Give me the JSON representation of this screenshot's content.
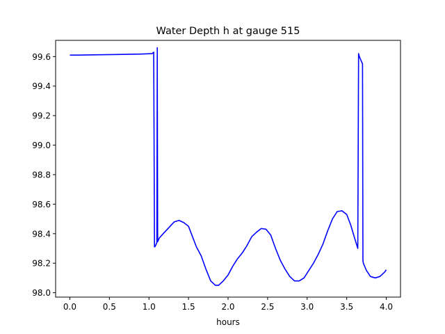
{
  "chart_data": {
    "type": "line",
    "title": "Water Depth h at gauge 515",
    "xlabel": "hours",
    "ylabel": "",
    "xlim": [
      -0.18,
      4.18
    ],
    "ylim": [
      97.97,
      99.71
    ],
    "xticks": [
      0.0,
      0.5,
      1.0,
      1.5,
      2.0,
      2.5,
      3.0,
      3.5,
      4.0
    ],
    "xtick_labels": [
      "0.0",
      "0.5",
      "1.0",
      "1.5",
      "2.0",
      "2.5",
      "3.0",
      "3.5",
      "4.0"
    ],
    "yticks": [
      98.0,
      98.2,
      98.4,
      98.6,
      98.8,
      99.0,
      99.2,
      99.4,
      99.6
    ],
    "ytick_labels": [
      "98.0",
      "98.2",
      "98.4",
      "98.6",
      "98.8",
      "99.0",
      "99.2",
      "99.4",
      "99.6"
    ],
    "grid": false,
    "series": [
      {
        "color": "#0000ff",
        "x": [
          0.0,
          0.1,
          0.3,
          0.6,
          0.9,
          1.04,
          1.06,
          1.07,
          1.08,
          1.1,
          1.105,
          1.11,
          1.13,
          1.18,
          1.25,
          1.32,
          1.38,
          1.44,
          1.5,
          1.55,
          1.6,
          1.66,
          1.72,
          1.78,
          1.84,
          1.88,
          1.94,
          2.0,
          2.06,
          2.12,
          2.18,
          2.24,
          2.3,
          2.36,
          2.42,
          2.48,
          2.54,
          2.6,
          2.66,
          2.72,
          2.78,
          2.84,
          2.9,
          2.96,
          3.02,
          3.08,
          3.14,
          3.2,
          3.26,
          3.32,
          3.38,
          3.44,
          3.5,
          3.55,
          3.6,
          3.64,
          3.65,
          3.66,
          3.7,
          3.705,
          3.71,
          3.75,
          3.8,
          3.86,
          3.92,
          3.98,
          4.0
        ],
        "y": [
          99.61,
          99.61,
          99.612,
          99.614,
          99.617,
          99.62,
          99.63,
          98.31,
          98.315,
          98.34,
          99.66,
          98.345,
          98.37,
          98.4,
          98.44,
          98.48,
          98.49,
          98.475,
          98.45,
          98.38,
          98.31,
          98.25,
          98.16,
          98.08,
          98.05,
          98.05,
          98.08,
          98.12,
          98.18,
          98.23,
          98.27,
          98.32,
          98.38,
          98.41,
          98.435,
          98.43,
          98.39,
          98.3,
          98.22,
          98.16,
          98.11,
          98.08,
          98.08,
          98.1,
          98.15,
          98.2,
          98.26,
          98.33,
          98.42,
          98.5,
          98.55,
          98.555,
          98.53,
          98.46,
          98.37,
          98.3,
          99.62,
          99.6,
          99.55,
          98.22,
          98.2,
          98.15,
          98.11,
          98.1,
          98.11,
          98.14,
          98.155
        ]
      }
    ]
  }
}
